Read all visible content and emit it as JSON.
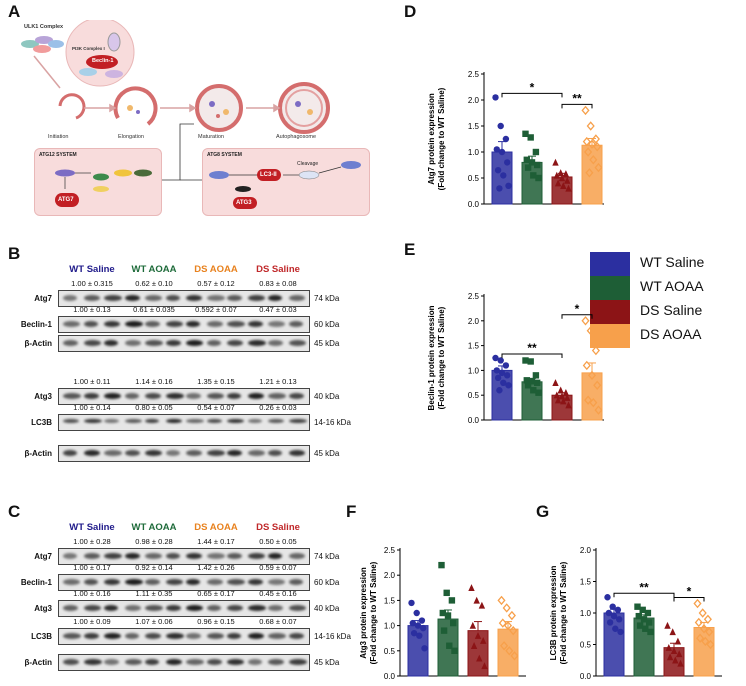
{
  "panels": {
    "A": "A",
    "B": "B",
    "C": "C",
    "D": "D",
    "E": "E",
    "F": "F",
    "G": "G"
  },
  "pathway": {
    "ulk1_complex": "ULK1 Complex",
    "pi3k_complex": "PI3K Complex I",
    "beclin": "Beclin-1",
    "stages": [
      "Initiation",
      "Elongation",
      "Maturation",
      "Autophagosome"
    ],
    "atg12_system": {
      "title": "ATG12 SYSTEM",
      "proteins": [
        "ATG12",
        "ATG5",
        "ATG16",
        "ATG10",
        "ATG7"
      ]
    },
    "atg8_system": {
      "title": "ATG8 SYSTEM",
      "cleavage": "Cleavage",
      "proteins": [
        "LC3-II",
        "ATG4",
        "ATG7",
        "ATG3",
        "LC3-I",
        "ATG8"
      ]
    }
  },
  "blot_B": {
    "groups": [
      "WT Saline",
      "WT AOAA",
      "DS AOAA",
      "DS Saline"
    ],
    "group_colors": [
      "#1f1a8a",
      "#1e6b3a",
      "#e8821f",
      "#c0282a"
    ],
    "quant_rows": [
      [
        "1.00 ± 0.315",
        "0.62 ± 0.10",
        "0.57 ± 0.12",
        "0.83 ± 0.08"
      ],
      [
        "1.00 ± 0.13",
        "0.61 ± 0.035",
        "0.592 ± 0.07",
        "0.47 ± 0.03"
      ],
      [
        "1.00 ± 0.11",
        "1.14 ± 0.16",
        "1.35 ± 0.15",
        "1.21 ± 0.13"
      ],
      [
        "1.00 ± 0.14",
        "0.80 ± 0.05",
        "0.54 ± 0.07",
        "0.26 ± 0.03"
      ]
    ],
    "rows": [
      {
        "label": "Atg7",
        "kda": "74 kDa"
      },
      {
        "label": "Beclin-1",
        "kda": "60 kDa"
      },
      {
        "label": "β-Actin",
        "kda": "45 kDa"
      },
      {
        "label": "Atg3",
        "kda": "40 kDa"
      },
      {
        "label": "LC3B",
        "kda": "14-16 kDa"
      },
      {
        "label": "β-Actin",
        "kda": "45 kDa"
      }
    ]
  },
  "blot_C": {
    "groups": [
      "WT Saline",
      "WT AOAA",
      "DS AOAA",
      "DS Saline"
    ],
    "quant_rows": [
      [
        "1.00 ± 0.28",
        "0.98 ± 0.28",
        "1.44 ± 0.17",
        "0.50 ± 0.05"
      ],
      [
        "1.00 ± 0.17",
        "0.92 ± 0.14",
        "1.42 ± 0.26",
        "0.59 ± 0.07"
      ],
      [
        "1.00 ± 0.16",
        "1.11 ± 0.35",
        "0.65 ± 0.17",
        "0.45 ± 0.16"
      ],
      [
        "1.00 ± 0.09",
        "1.07 ± 0.06",
        "0.96 ± 0.15",
        "0.68 ± 0.07"
      ]
    ],
    "rows": [
      {
        "label": "Atg7",
        "kda": "74 kDa"
      },
      {
        "label": "Beclin-1",
        "kda": "60 kDa"
      },
      {
        "label": "Atg3",
        "kda": "40 kDa"
      },
      {
        "label": "LC3B",
        "kda": "14-16 kDa"
      },
      {
        "label": "β-Actin",
        "kda": "45 kDa"
      }
    ]
  },
  "legend": [
    {
      "name": "WT Saline",
      "color": "#2b2fa0"
    },
    {
      "name": "WT AOAA",
      "color": "#1e5e36"
    },
    {
      "name": "DS Saline",
      "color": "#8c1416"
    },
    {
      "name": "DS AOAA",
      "color": "#f7a04b"
    }
  ],
  "chart_data": [
    {
      "panel": "D",
      "type": "bar",
      "ylabel": "Atg7 protein expression\n(Fold  change to WT Saline)",
      "ylim": [
        0,
        2.5
      ],
      "yticks": [
        "0.0",
        "0.5",
        "1.0",
        "1.5",
        "2.0",
        "2.5"
      ],
      "categories": [
        "WT Saline",
        "WT AOAA",
        "DS Saline",
        "DS AOAA"
      ],
      "values": [
        1.0,
        0.8,
        0.52,
        1.13
      ],
      "errors": [
        0.2,
        0.12,
        0.07,
        0.13
      ],
      "points": [
        [
          2.05,
          1.5,
          1.25,
          1.05,
          1.0,
          0.8,
          0.65,
          0.55,
          0.35,
          0.3
        ],
        [
          1.35,
          1.28,
          1.0,
          0.85,
          0.8,
          0.75,
          0.7,
          0.55,
          0.5
        ],
        [
          0.8,
          0.6,
          0.58,
          0.55,
          0.5,
          0.45,
          0.4,
          0.35,
          0.3
        ],
        [
          1.8,
          1.5,
          1.25,
          1.2,
          1.15,
          1.1,
          1.0,
          0.85,
          0.7,
          0.6
        ]
      ],
      "sig": [
        {
          "from": 0,
          "to": 2,
          "label": "*"
        },
        {
          "from": 2,
          "to": 3,
          "label": "**"
        }
      ]
    },
    {
      "panel": "E",
      "type": "bar",
      "ylabel": "Beclin-1 protein expression\n(Fold  change to WT Saline)",
      "ylim": [
        0,
        2.5
      ],
      "yticks": [
        "0.0",
        "0.5",
        "1.0",
        "1.5",
        "2.0",
        "2.5"
      ],
      "categories": [
        "WT Saline",
        "WT AOAA",
        "DS Saline",
        "DS AOAA"
      ],
      "values": [
        1.0,
        0.77,
        0.5,
        0.95
      ],
      "errors": [
        0.09,
        0.07,
        0.05,
        0.2
      ],
      "points": [
        [
          1.25,
          1.2,
          1.1,
          1.0,
          0.95,
          0.9,
          0.85,
          0.75,
          0.7,
          0.6
        ],
        [
          1.2,
          1.18,
          0.9,
          0.8,
          0.78,
          0.75,
          0.7,
          0.6,
          0.55
        ],
        [
          0.75,
          0.6,
          0.55,
          0.5,
          0.48,
          0.45,
          0.4,
          0.38,
          0.3
        ],
        [
          2.0,
          1.8,
          1.4,
          1.1,
          0.9,
          0.7,
          0.4,
          0.35,
          0.2
        ]
      ],
      "sig": [
        {
          "from": 0,
          "to": 2,
          "label": "**"
        },
        {
          "from": 2,
          "to": 3,
          "label": "*"
        }
      ]
    },
    {
      "panel": "F",
      "type": "bar",
      "ylabel": "Atg3 protein expression\n(Fold  change to WT Saline)",
      "ylim": [
        0,
        2.5
      ],
      "yticks": [
        "0.0",
        "0.5",
        "1.0",
        "1.5",
        "2.0",
        "2.5"
      ],
      "categories": [
        "WT Saline",
        "WT AOAA",
        "DS Saline",
        "DS AOAA"
      ],
      "values": [
        1.0,
        1.13,
        0.9,
        0.93
      ],
      "errors": [
        0.1,
        0.18,
        0.18,
        0.15
      ],
      "points": [
        [
          1.45,
          1.25,
          1.1,
          1.05,
          1.0,
          0.95,
          0.85,
          0.8,
          0.55
        ],
        [
          2.2,
          1.65,
          1.5,
          1.25,
          1.2,
          1.05,
          0.9,
          0.6,
          0.5
        ],
        [
          1.75,
          1.5,
          1.4,
          1.0,
          0.8,
          0.7,
          0.6,
          0.35,
          0.2
        ],
        [
          1.5,
          1.35,
          1.2,
          1.05,
          1.0,
          0.9,
          0.6,
          0.5,
          0.4
        ]
      ],
      "sig": []
    },
    {
      "panel": "G",
      "type": "bar",
      "ylabel": "LC3B protein expression\n(Fold  change to WT Saline)",
      "ylim": [
        0,
        2.0
      ],
      "yticks": [
        "0.0",
        "0.5",
        "1.0",
        "1.5",
        "2.0"
      ],
      "categories": [
        "WT Saline",
        "WT AOAA",
        "DS Saline",
        "DS AOAA"
      ],
      "values": [
        1.0,
        0.92,
        0.45,
        0.77
      ],
      "errors": [
        0.06,
        0.05,
        0.07,
        0.08
      ],
      "points": [
        [
          1.25,
          1.1,
          1.05,
          1.0,
          0.95,
          0.9,
          0.85,
          0.75,
          0.7
        ],
        [
          1.1,
          1.05,
          1.0,
          0.95,
          0.9,
          0.85,
          0.8,
          0.75,
          0.7
        ],
        [
          0.8,
          0.7,
          0.55,
          0.45,
          0.4,
          0.35,
          0.3,
          0.25,
          0.2
        ],
        [
          1.15,
          1.0,
          0.9,
          0.85,
          0.75,
          0.7,
          0.6,
          0.55,
          0.5
        ]
      ],
      "sig": [
        {
          "from": 0,
          "to": 2,
          "label": "**"
        },
        {
          "from": 2,
          "to": 3,
          "label": "*"
        }
      ]
    }
  ]
}
